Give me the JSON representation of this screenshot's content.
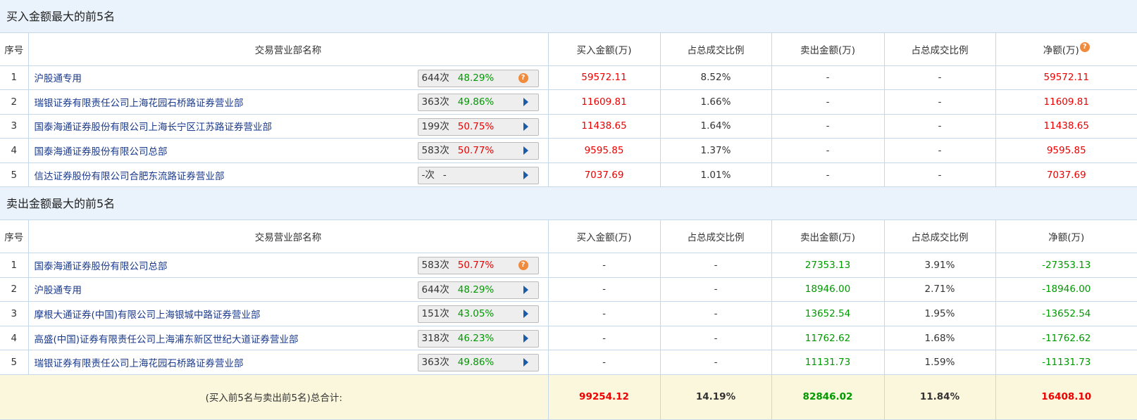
{
  "colors": {
    "up": "#e00000",
    "down": "#009900",
    "header_bg": "#eaf3fc",
    "total_bg": "#fbf7dc"
  },
  "columns": [
    "序号",
    "交易营业部名称",
    "买入金额(万)",
    "占总成交比例",
    "卖出金额(万)",
    "占总成交比例",
    "净额(万)"
  ],
  "buy": {
    "title": "买入金额最大的前5名",
    "rows": [
      {
        "no": "1",
        "name": "沪股通专用",
        "times": "644次",
        "pct": "48.29%",
        "pct_color": "green",
        "icon": "question-icon",
        "buy": "59572.11",
        "buy_ratio": "8.52%",
        "sell": "-",
        "sell_ratio": "-",
        "net": "59572.11"
      },
      {
        "no": "2",
        "name": "瑞银证券有限责任公司上海花园石桥路证券营业部",
        "times": "363次",
        "pct": "49.86%",
        "pct_color": "green",
        "icon": "arrow-right-icon",
        "buy": "11609.81",
        "buy_ratio": "1.66%",
        "sell": "-",
        "sell_ratio": "-",
        "net": "11609.81"
      },
      {
        "no": "3",
        "name": "国泰海通证券股份有限公司上海长宁区江苏路证券营业部",
        "times": "199次",
        "pct": "50.75%",
        "pct_color": "red",
        "icon": "arrow-right-icon",
        "buy": "11438.65",
        "buy_ratio": "1.64%",
        "sell": "-",
        "sell_ratio": "-",
        "net": "11438.65"
      },
      {
        "no": "4",
        "name": "国泰海通证券股份有限公司总部",
        "times": "583次",
        "pct": "50.77%",
        "pct_color": "red",
        "icon": "arrow-right-icon",
        "buy": "9595.85",
        "buy_ratio": "1.37%",
        "sell": "-",
        "sell_ratio": "-",
        "net": "9595.85"
      },
      {
        "no": "5",
        "name": "信达证券股份有限公司合肥东流路证券营业部",
        "times": "-次",
        "pct": "-",
        "pct_color": "none",
        "icon": "arrow-right-icon",
        "buy": "7037.69",
        "buy_ratio": "1.01%",
        "sell": "-",
        "sell_ratio": "-",
        "net": "7037.69"
      }
    ]
  },
  "sell": {
    "title": "卖出金额最大的前5名",
    "rows": [
      {
        "no": "1",
        "name": "国泰海通证券股份有限公司总部",
        "times": "583次",
        "pct": "50.77%",
        "pct_color": "red",
        "icon": "question-icon",
        "buy": "-",
        "buy_ratio": "-",
        "sell": "27353.13",
        "sell_ratio": "3.91%",
        "net": "-27353.13"
      },
      {
        "no": "2",
        "name": "沪股通专用",
        "times": "644次",
        "pct": "48.29%",
        "pct_color": "green",
        "icon": "arrow-right-icon",
        "buy": "-",
        "buy_ratio": "-",
        "sell": "18946.00",
        "sell_ratio": "2.71%",
        "net": "-18946.00"
      },
      {
        "no": "3",
        "name": "摩根大通证券(中国)有限公司上海银城中路证券营业部",
        "times": "151次",
        "pct": "43.05%",
        "pct_color": "green",
        "icon": "arrow-right-icon",
        "buy": "-",
        "buy_ratio": "-",
        "sell": "13652.54",
        "sell_ratio": "1.95%",
        "net": "-13652.54"
      },
      {
        "no": "4",
        "name": "高盛(中国)证券有限责任公司上海浦东新区世纪大道证券营业部",
        "times": "318次",
        "pct": "46.23%",
        "pct_color": "green",
        "icon": "arrow-right-icon",
        "buy": "-",
        "buy_ratio": "-",
        "sell": "11762.62",
        "sell_ratio": "1.68%",
        "net": "-11762.62"
      },
      {
        "no": "5",
        "name": "瑞银证券有限责任公司上海花园石桥路证券营业部",
        "times": "363次",
        "pct": "49.86%",
        "pct_color": "green",
        "icon": "arrow-right-icon",
        "buy": "-",
        "buy_ratio": "-",
        "sell": "11131.73",
        "sell_ratio": "1.59%",
        "net": "-11131.73"
      }
    ]
  },
  "total": {
    "label": "(买入前5名与卖出前5名)总合计:",
    "buy": "99254.12",
    "buy_ratio": "14.19%",
    "sell": "82846.02",
    "sell_ratio": "11.84%",
    "net": "16408.10"
  },
  "help_glyph": "?"
}
